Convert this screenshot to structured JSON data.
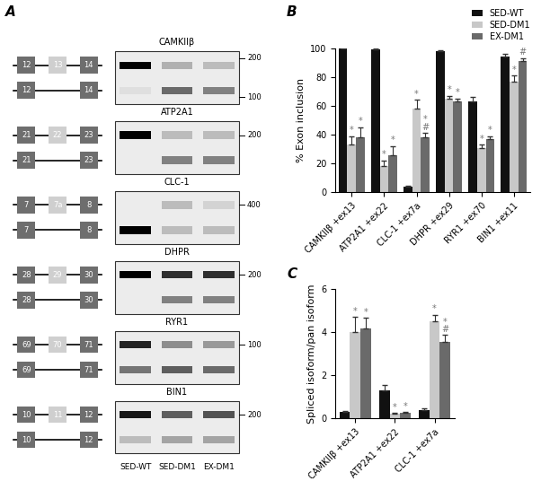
{
  "panel_labels": [
    "A",
    "B",
    "C"
  ],
  "gels": {
    "lanes": [
      "SED-WT",
      "SED-DM1",
      "EX-DM1"
    ],
    "items": [
      {
        "name": "CAMKIIβ",
        "exons": [
          "12",
          "13",
          "14"
        ],
        "markers": [
          200,
          100
        ]
      },
      {
        "name": "ATP2A1",
        "exons": [
          "21",
          "22",
          "23"
        ],
        "markers": [
          200
        ]
      },
      {
        "name": "CLC-1",
        "exons": [
          "7",
          "7a",
          "8"
        ],
        "markers": [
          400
        ]
      },
      {
        "name": "DHPR",
        "exons": [
          "28",
          "29",
          "30"
        ],
        "markers": [
          200
        ]
      },
      {
        "name": "RYR1",
        "exons": [
          "69",
          "70",
          "71"
        ],
        "markers": [
          100
        ]
      },
      {
        "name": "BIN1",
        "exons": [
          "10",
          "11",
          "12"
        ],
        "markers": [
          200
        ]
      }
    ]
  },
  "chart_data": [
    {
      "type": "bar",
      "ylabel": "% Exon inclusion",
      "categories": [
        "CAMKIIβ +ex13",
        "ATP2A1 +ex22",
        "CLC-1 +ex7a",
        "DHPR +ex29",
        "RYR1 +ex70",
        "BIN1 +ex11"
      ],
      "ylim": [
        0,
        100
      ],
      "yticks": [
        0,
        20,
        40,
        60,
        80,
        100
      ],
      "legend": "upper right",
      "series": [
        {
          "name": "SED-WT",
          "color": "#111111",
          "values": [
            100,
            99,
            4,
            98,
            63,
            94
          ],
          "errors": [
            0.5,
            1,
            0.5,
            0.5,
            3,
            2
          ],
          "annotations": [
            null,
            null,
            null,
            null,
            null,
            null
          ]
        },
        {
          "name": "SED-DM1",
          "color": "#c8c8c8",
          "values": [
            33,
            18,
            58,
            65,
            31,
            77
          ],
          "errors": [
            6,
            4,
            6,
            2,
            2,
            4
          ],
          "annotations": [
            "*",
            "*",
            "*",
            "*",
            "*",
            "*"
          ]
        },
        {
          "name": "EX-DM1",
          "color": "#6a6a6a",
          "values": [
            38,
            26,
            38,
            63,
            37,
            91
          ],
          "errors": [
            7,
            6,
            3,
            2,
            2,
            2
          ],
          "annotations": [
            "*",
            "*",
            "*\n#",
            "*",
            "*",
            "#"
          ]
        }
      ]
    },
    {
      "type": "bar",
      "ylabel": "Spliced isoform/pan isoform",
      "categories": [
        "CAMKIIβ +ex13",
        "ATP2A1 +ex22",
        "CLC-1 +ex7a"
      ],
      "ylim": [
        0,
        6
      ],
      "yticks": [
        0,
        2,
        4,
        6
      ],
      "series": [
        {
          "name": "SED-WT",
          "color": "#111111",
          "values": [
            0.3,
            1.3,
            0.4
          ],
          "errors": [
            0.05,
            0.25,
            0.07
          ],
          "annotations": [
            null,
            null,
            null
          ]
        },
        {
          "name": "SED-DM1",
          "color": "#c8c8c8",
          "values": [
            4.0,
            0.2,
            4.5
          ],
          "errors": [
            0.7,
            0.05,
            0.3
          ],
          "annotations": [
            "*",
            "*",
            "*"
          ]
        },
        {
          "name": "EX-DM1",
          "color": "#6a6a6a",
          "values": [
            4.15,
            0.25,
            3.55
          ],
          "errors": [
            0.5,
            0.05,
            0.3
          ],
          "annotations": [
            "*",
            "*",
            "*\n#"
          ]
        }
      ]
    }
  ]
}
